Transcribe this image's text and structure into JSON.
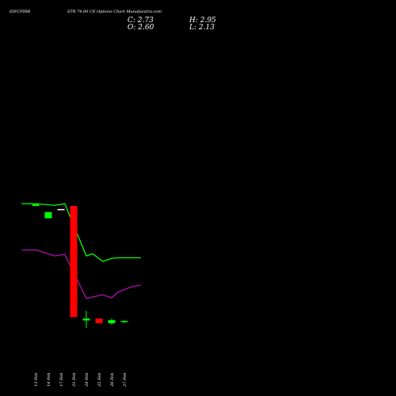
{
  "header": {
    "symbol": "IDFCFIRB",
    "description": "STR 74.00 CE Options Chart Munafasutra.com",
    "ohlc": {
      "c_label": "C: 2.73",
      "o_label": "O: 2.60",
      "h_label": "H: 2.95",
      "l_label": "L: 2.13"
    }
  },
  "colors": {
    "background": "#000000",
    "up": "#00ff00",
    "down": "#ff0000",
    "neutral": "#ffffff",
    "line_upper": "#00ff00",
    "line_lower": "#b010b0"
  },
  "chart_data": {
    "type": "candlestick",
    "categories": [
      "13 Feb",
      "14 Feb",
      "17 Feb",
      "21 Feb",
      "24 Feb",
      "25 Feb",
      "26 Feb",
      "27 Feb"
    ],
    "candles": [
      {
        "date": "13 Feb",
        "open": 40.0,
        "close": 40.5,
        "high": 40.5,
        "low": 40.0,
        "color": "up"
      },
      {
        "date": "14 Feb",
        "open": 38.0,
        "close": 36.0,
        "high": 38.0,
        "low": 36.0,
        "color": "up"
      },
      {
        "date": "17 Feb",
        "open": 39.0,
        "close": 39.0,
        "high": 39.0,
        "low": 39.0,
        "color": "neutral"
      },
      {
        "date": "21 Feb",
        "open": 40.0,
        "close": 4.0,
        "high": 40.0,
        "low": 3.8,
        "color": "down"
      },
      {
        "date": "24 Feb",
        "open": 2.9,
        "close": 3.5,
        "high": 6.0,
        "low": 0.5,
        "color": "up"
      },
      {
        "date": "25 Feb",
        "open": 3.5,
        "close": 2.0,
        "high": 3.5,
        "low": 2.0,
        "color": "down"
      },
      {
        "date": "26 Feb",
        "open": 2.0,
        "close": 3.0,
        "high": 3.5,
        "low": 1.5,
        "color": "up"
      },
      {
        "date": "27 Feb",
        "open": 2.6,
        "close": 2.73,
        "high": 2.95,
        "low": 2.13,
        "color": "up"
      }
    ],
    "overlays": [
      {
        "color": "line_upper",
        "x_index": [
          -1.1,
          0.1,
          1.5,
          2.3,
          4.0,
          4.5,
          5.3,
          6.0,
          6.5,
          7.5,
          8.3
        ],
        "values": [
          40.7,
          40.7,
          40.2,
          40.7,
          23.8,
          24.5,
          22.0,
          23.0,
          23.2,
          23.2,
          23.2
        ]
      },
      {
        "color": "line_lower",
        "x_index": [
          -1.1,
          0.1,
          1.5,
          2.3,
          4.0,
          4.5,
          5.3,
          6.0,
          6.5,
          7.5,
          8.3
        ],
        "values": [
          25.7,
          25.7,
          23.8,
          24.3,
          10.0,
          10.5,
          11.2,
          10.2,
          12.1,
          13.7,
          14.4
        ]
      }
    ]
  }
}
